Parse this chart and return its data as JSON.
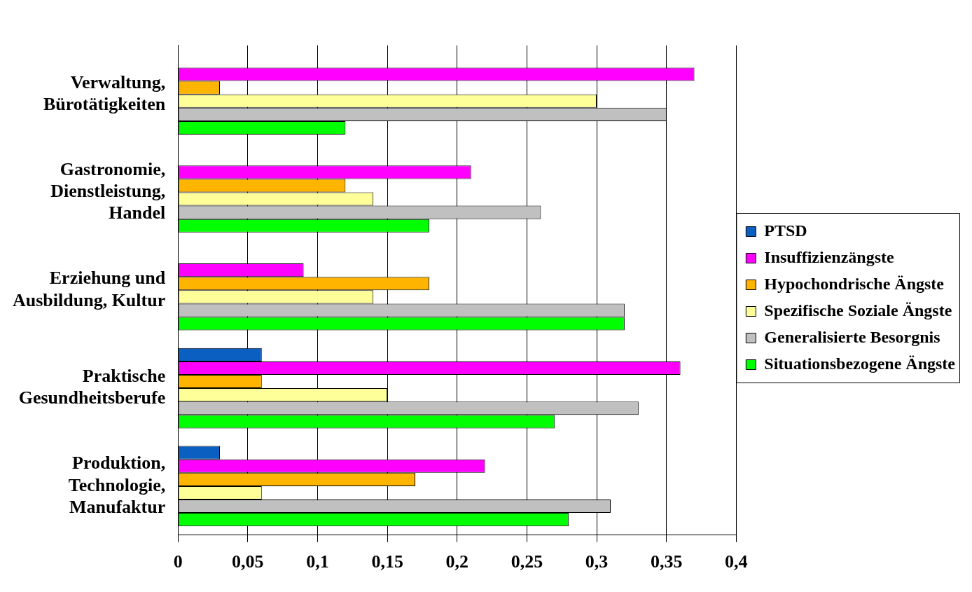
{
  "chart_data": {
    "type": "bar",
    "orientation": "horizontal",
    "categories": [
      "Verwaltung, Bürotätigkeiten",
      "Gastronomie, Dienstleistung, Handel",
      "Erziehung und Ausbildung, Kultur",
      "Praktische Gesundheitsberufe",
      "Produktion, Technologie, Manufaktur"
    ],
    "series": [
      {
        "name": "PTSD",
        "color": "#0a5fc0",
        "values": [
          null,
          null,
          null,
          0.06,
          0.03
        ]
      },
      {
        "name": "Insuffizienzängste",
        "color": "#ff00ff",
        "values": [
          0.37,
          0.21,
          0.09,
          0.36,
          0.22
        ]
      },
      {
        "name": "Hypochondrische Ängste",
        "color": "#ffb400",
        "values": [
          0.03,
          0.12,
          0.18,
          0.06,
          0.17
        ]
      },
      {
        "name": "Spezifische Soziale Ängste",
        "color": "#ffff99",
        "values": [
          0.3,
          0.14,
          0.14,
          0.15,
          0.06
        ]
      },
      {
        "name": "Generalisierte Besorgnis",
        "color": "#c0c0c0",
        "values": [
          0.35,
          0.26,
          0.32,
          0.33,
          0.31
        ]
      },
      {
        "name": "Situationsbezogene Ängste",
        "color": "#00ff00",
        "values": [
          0.12,
          0.18,
          0.32,
          0.27,
          0.28
        ]
      }
    ],
    "xlim": [
      0,
      0.4
    ],
    "xticks": [
      0,
      {
        "value": 0.05,
        "label": "0,05"
      },
      {
        "value": 0.1,
        "label": "0,1"
      },
      {
        "value": 0.15,
        "label": "0,15"
      },
      {
        "value": 0.2,
        "label": "0,2"
      },
      {
        "value": 0.25,
        "label": "0,25"
      },
      {
        "value": 0.3,
        "label": "0,3"
      },
      {
        "value": 0.35,
        "label": "0,35"
      },
      {
        "value": 0.4,
        "label": "0,4"
      }
    ],
    "grid": "x",
    "legend": "right"
  }
}
